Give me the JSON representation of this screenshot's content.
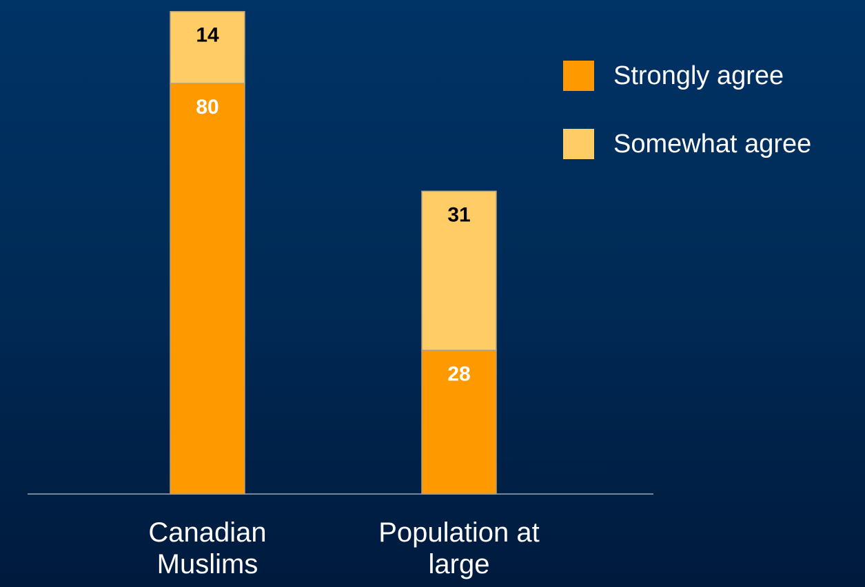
{
  "chart_data": {
    "type": "stacked_bar",
    "categories": [
      "Canadian Muslims",
      "Population at large"
    ],
    "series": [
      {
        "name": "Strongly agree",
        "color": "#ff9900",
        "values": [
          80,
          28
        ]
      },
      {
        "name": "Somewhat agree",
        "color": "#ffcc66",
        "values": [
          14,
          31
        ]
      }
    ]
  }
}
